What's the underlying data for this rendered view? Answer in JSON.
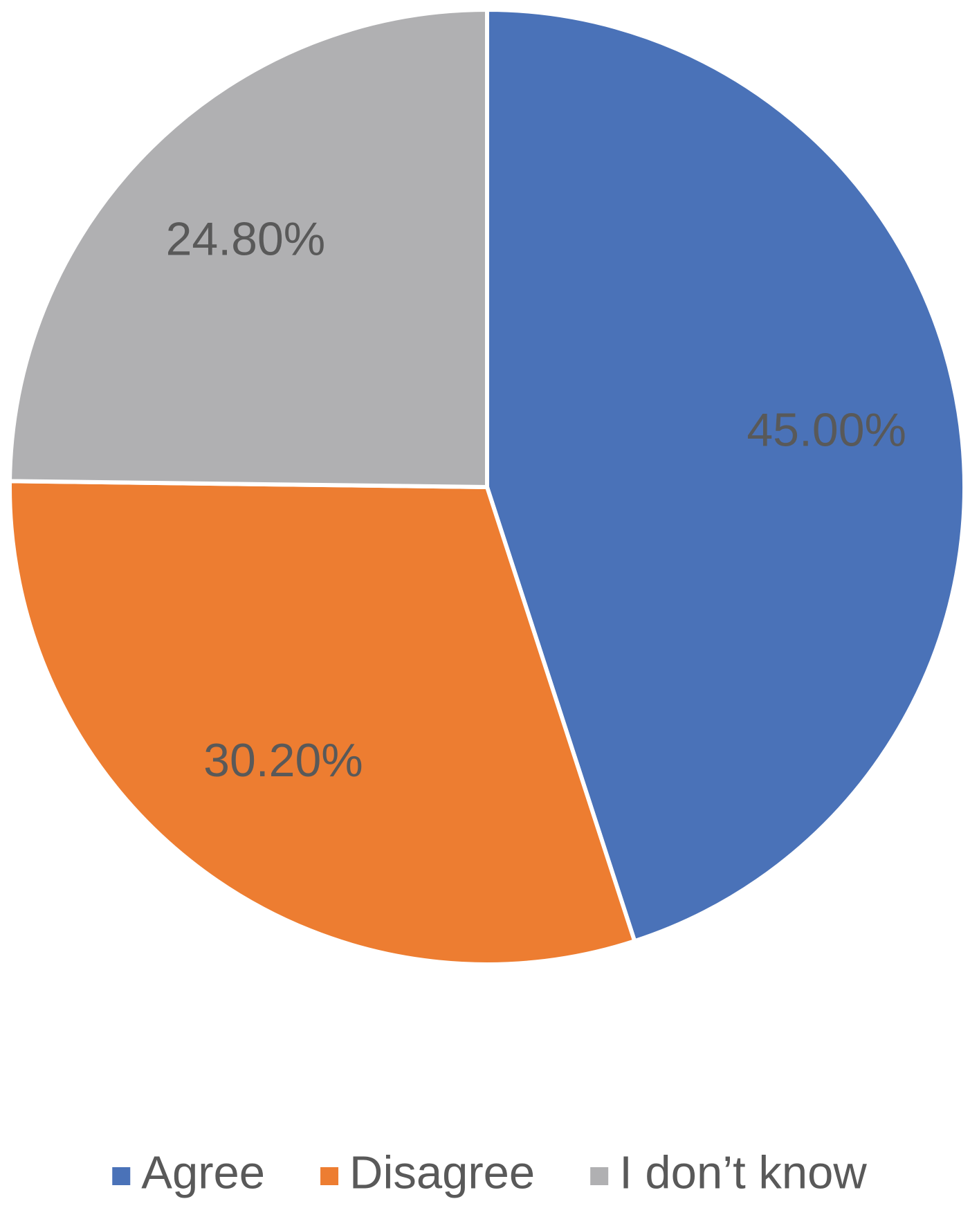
{
  "chart_data": {
    "type": "pie",
    "categories": [
      "Agree",
      "Disagree",
      "I don’t know"
    ],
    "values": [
      45,
      30.2,
      24.8
    ],
    "value_labels": [
      "45.00%",
      "30.20%",
      "24.80%"
    ],
    "colors": [
      "#4a72b8",
      "#ed7d31",
      "#b0b0b2"
    ],
    "legend": "bottom"
  }
}
